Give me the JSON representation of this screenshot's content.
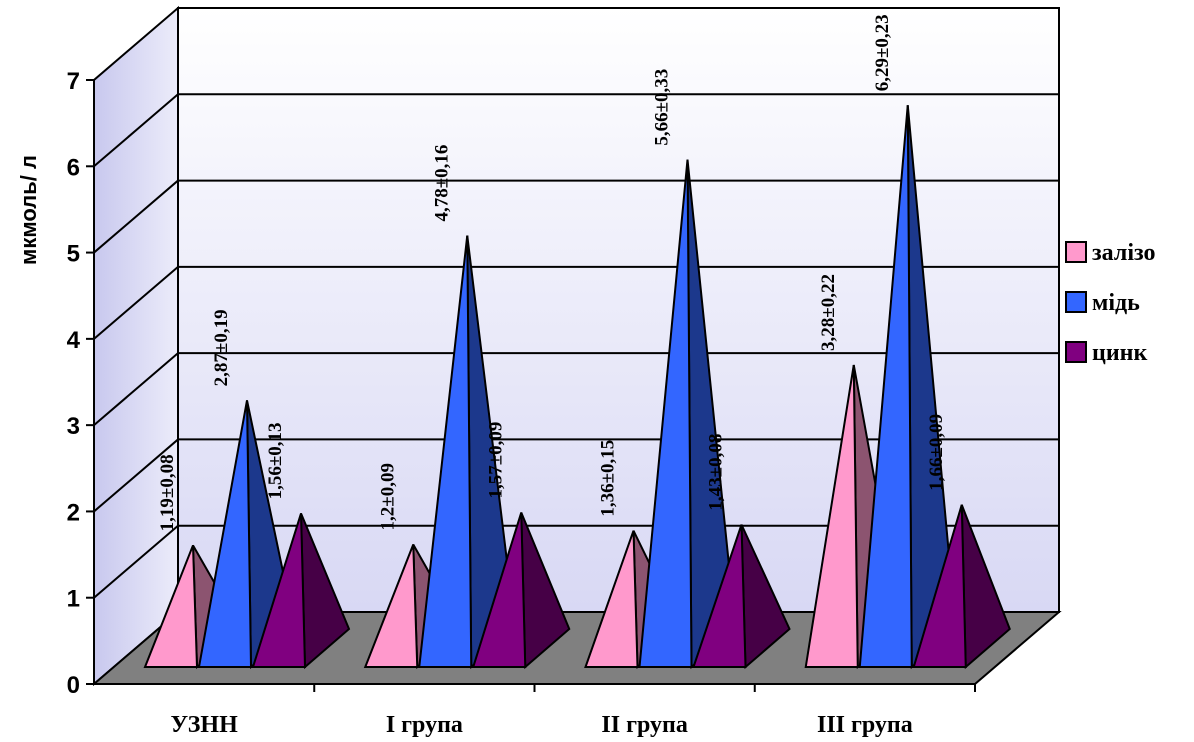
{
  "chart_data": {
    "type": "bar",
    "subtype": "3d-pyramid",
    "ylabel": "мкмоль/ л",
    "ylim": [
      0,
      7
    ],
    "y_ticks": [
      "0",
      "1",
      "2",
      "3",
      "4",
      "5",
      "6",
      "7"
    ],
    "grid": true,
    "legend_position": "right",
    "categories": [
      "УЗНН",
      "І група",
      "ІІ група",
      "ІІІ група"
    ],
    "series": [
      {
        "name": "залізо",
        "color": "#ff99cc",
        "values": [
          1.19,
          1.2,
          1.36,
          3.28
        ],
        "labels": [
          "1,19±0,08",
          "1,2±0,09",
          "1,36±0,15",
          "3,28±0,22"
        ]
      },
      {
        "name": "мідь",
        "color": "#3366ff",
        "values": [
          2.87,
          4.78,
          5.66,
          6.29
        ],
        "labels": [
          "2,87±0,19",
          "4,78±0,16",
          "5,66±0,33",
          "6,29±0,23"
        ]
      },
      {
        "name": "цинк",
        "color": "#800080",
        "values": [
          1.56,
          1.57,
          1.43,
          1.66
        ],
        "labels": [
          "1,56±0,13",
          "1,57±0,09",
          "1,43±0,08",
          "1,66±0,09"
        ]
      }
    ]
  }
}
